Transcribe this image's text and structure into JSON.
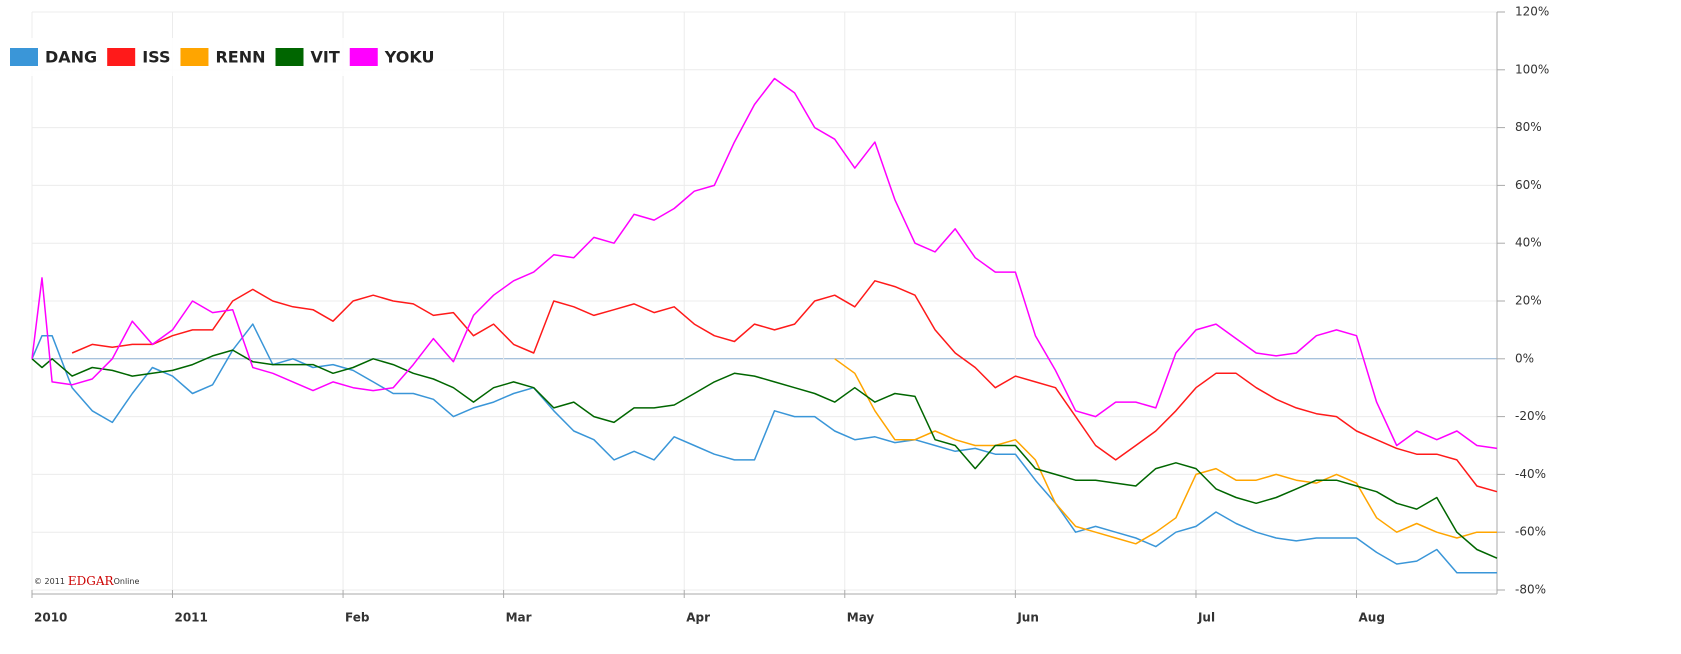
{
  "chart_data": {
    "type": "line",
    "x": [
      0,
      1,
      2,
      4,
      6,
      8,
      10,
      12,
      14,
      16,
      18,
      20,
      22,
      24,
      26,
      28,
      30,
      32,
      34,
      36,
      38,
      40,
      42,
      44,
      46,
      48,
      50,
      52,
      54,
      56,
      58,
      60,
      62,
      64,
      66,
      68,
      70,
      72,
      74,
      76,
      78,
      80,
      82,
      84,
      86,
      88,
      90,
      92,
      94,
      96,
      98,
      100,
      102,
      104,
      106,
      108,
      110,
      112,
      114,
      116,
      118,
      120,
      122,
      124,
      126,
      128,
      130,
      132,
      134,
      136,
      138,
      140,
      142,
      144,
      146
    ],
    "xlim": [
      0,
      146
    ],
    "xticks": [
      {
        "value": 0,
        "label": "2010"
      },
      {
        "value": 14,
        "label": "2011"
      },
      {
        "value": 31,
        "label": "Feb"
      },
      {
        "value": 47,
        "label": "Mar"
      },
      {
        "value": 65,
        "label": "Apr"
      },
      {
        "value": 81,
        "label": "May"
      },
      {
        "value": 98,
        "label": "Jun"
      },
      {
        "value": 116,
        "label": "Jul"
      },
      {
        "value": 132,
        "label": "Aug"
      }
    ],
    "ylim": [
      -80,
      120
    ],
    "yticks": [
      {
        "value": -80,
        "label": "-80%"
      },
      {
        "value": -60,
        "label": "-60%"
      },
      {
        "value": -40,
        "label": "-40%"
      },
      {
        "value": -20,
        "label": "-20%"
      },
      {
        "value": 0,
        "label": "0%"
      },
      {
        "value": 20,
        "label": "20%"
      },
      {
        "value": 40,
        "label": "40%"
      },
      {
        "value": 60,
        "label": "60%"
      },
      {
        "value": 80,
        "label": "80%"
      },
      {
        "value": 100,
        "label": "100%"
      },
      {
        "value": 120,
        "label": "120%"
      }
    ],
    "grid": true,
    "legend": "top-left",
    "source_parts": [
      "© 2011",
      "EDGAR",
      "Online"
    ],
    "series": [
      {
        "name": "DANG",
        "color": "#3a96d8",
        "values": [
          0,
          8,
          8,
          -10,
          -18,
          -22,
          -12,
          -3,
          -6,
          -12,
          -9,
          3,
          12,
          -2,
          0,
          -3,
          -2,
          -4,
          -8,
          -12,
          -12,
          -14,
          -20,
          -17,
          -15,
          -12,
          -10,
          -18,
          -25,
          -28,
          -35,
          -32,
          -35,
          -27,
          -30,
          -33,
          -35,
          -35,
          -18,
          -20,
          -20,
          -25,
          -28,
          -27,
          -29,
          -28,
          -30,
          -32,
          -31,
          -33,
          -33,
          -42,
          -50,
          -60,
          -58,
          -60,
          -62,
          -65,
          -60,
          -58,
          -53,
          -57,
          -60,
          -62,
          -63,
          -62,
          -62,
          -62,
          -67,
          -71,
          -70,
          -66,
          -74,
          -74,
          -74
        ]
      },
      {
        "name": "ISS",
        "color": "#ff1a1a",
        "values": [
          null,
          null,
          null,
          2,
          5,
          4,
          5,
          5,
          8,
          10,
          10,
          20,
          24,
          20,
          18,
          17,
          13,
          20,
          22,
          20,
          19,
          15,
          16,
          8,
          12,
          5,
          2,
          20,
          18,
          15,
          17,
          19,
          16,
          18,
          12,
          8,
          6,
          12,
          10,
          12,
          20,
          22,
          18,
          27,
          25,
          22,
          10,
          2,
          -3,
          -10,
          -6,
          -8,
          -10,
          -20,
          -30,
          -35,
          -30,
          -25,
          -18,
          -10,
          -5,
          -5,
          -10,
          -14,
          -17,
          -19,
          -20,
          -25,
          -28,
          -31,
          -33,
          -33,
          -35,
          -44,
          -46
        ]
      },
      {
        "name": "RENN",
        "color": "#ffa500",
        "values": [
          null,
          null,
          null,
          null,
          null,
          null,
          null,
          null,
          null,
          null,
          null,
          null,
          null,
          null,
          null,
          null,
          null,
          null,
          null,
          null,
          null,
          null,
          null,
          null,
          null,
          null,
          null,
          null,
          null,
          null,
          null,
          null,
          null,
          null,
          null,
          null,
          null,
          null,
          null,
          null,
          null,
          0,
          -5,
          -18,
          -28,
          -28,
          -25,
          -28,
          -30,
          -30,
          -28,
          -35,
          -50,
          -58,
          -60,
          -62,
          -64,
          -60,
          -55,
          -40,
          -38,
          -42,
          -42,
          -40,
          -42,
          -43,
          -40,
          -43,
          -55,
          -60,
          -57,
          -60,
          -62,
          -60,
          -60
        ]
      },
      {
        "name": "VIT",
        "color": "#006600",
        "values": [
          0,
          -3,
          0,
          -6,
          -3,
          -4,
          -6,
          -5,
          -4,
          -2,
          1,
          3,
          -1,
          -2,
          -2,
          -2,
          -5,
          -3,
          0,
          -2,
          -5,
          -7,
          -10,
          -15,
          -10,
          -8,
          -10,
          -17,
          -15,
          -20,
          -22,
          -17,
          -17,
          -16,
          -12,
          -8,
          -5,
          -6,
          -8,
          -10,
          -12,
          -15,
          -10,
          -15,
          -12,
          -13,
          -28,
          -30,
          -38,
          -30,
          -30,
          -38,
          -40,
          -42,
          -42,
          -43,
          -44,
          -38,
          -36,
          -38,
          -45,
          -48,
          -50,
          -48,
          -45,
          -42,
          -42,
          -44,
          -46,
          -50,
          -52,
          -48,
          -60,
          -66,
          -69
        ]
      },
      {
        "name": "YOKU",
        "color": "#ff00ff",
        "values": [
          0,
          28,
          -8,
          -9,
          -7,
          0,
          13,
          5,
          10,
          20,
          16,
          17,
          -3,
          -5,
          -8,
          -11,
          -8,
          -10,
          -11,
          -10,
          -2,
          7,
          -1,
          15,
          22,
          27,
          30,
          36,
          35,
          42,
          40,
          50,
          48,
          52,
          58,
          60,
          75,
          88,
          97,
          92,
          80,
          76,
          66,
          75,
          55,
          40,
          37,
          45,
          35,
          30,
          30,
          8,
          -4,
          -18,
          -20,
          -15,
          -15,
          -17,
          2,
          10,
          12,
          7,
          2,
          1,
          2,
          8,
          10,
          8,
          -15,
          -30,
          -25,
          -28,
          -25,
          -30,
          -31
        ]
      }
    ]
  }
}
